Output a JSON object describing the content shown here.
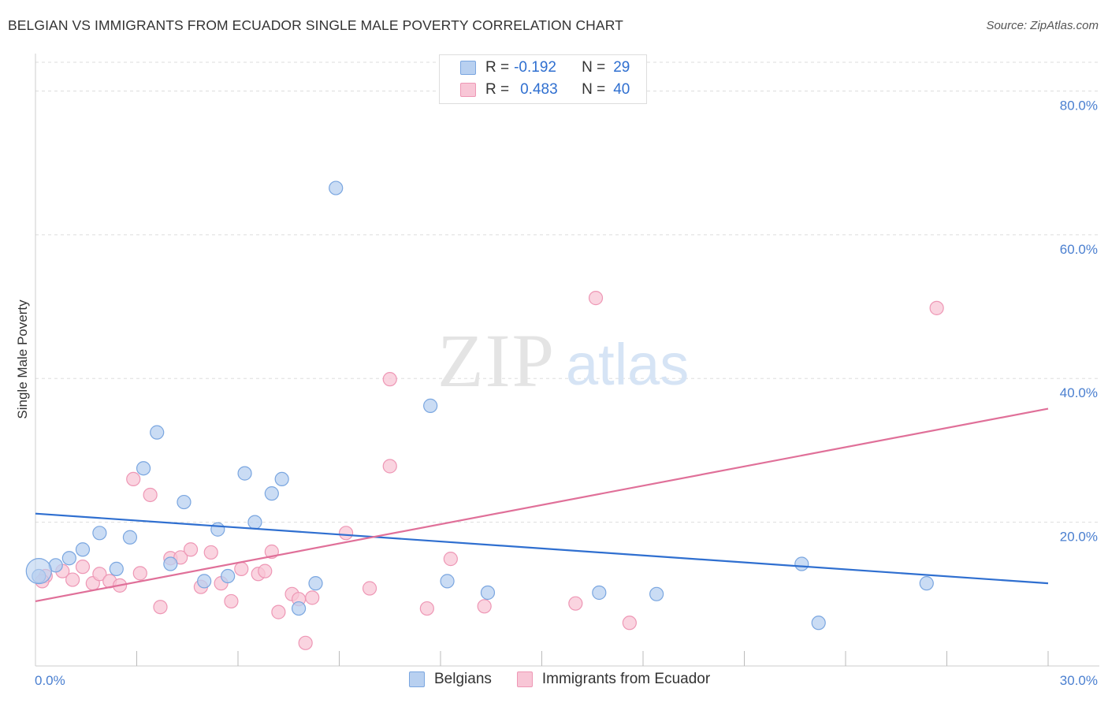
{
  "header": {
    "title": "BELGIAN VS IMMIGRANTS FROM ECUADOR SINGLE MALE POVERTY CORRELATION CHART",
    "source": "Source: ZipAtlas.com"
  },
  "watermark": {
    "zip": "ZIP",
    "atlas": "atlas"
  },
  "stats_legend": {
    "r_label": "R =",
    "n_label": "N =",
    "rows": [
      {
        "series": "Belgians",
        "r": "-0.192",
        "n": "29"
      },
      {
        "series": "Immigrants from Ecuador",
        "r": "0.483",
        "n": "40"
      }
    ]
  },
  "colors": {
    "belgians_fill": "#b8d0f0",
    "belgians_stroke": "#7aa6e0",
    "belgians_line": "#2f6fd0",
    "ecuador_fill": "#f8c6d6",
    "ecuador_stroke": "#ee97b5",
    "ecuador_line": "#e07099",
    "tick_color": "#4a7fd0"
  },
  "chart_data": {
    "type": "scatter",
    "title": "BELGIAN VS IMMIGRANTS FROM ECUADOR SINGLE MALE POVERTY CORRELATION CHART",
    "xlabel": "",
    "ylabel": "Single Male Poverty",
    "xlim": [
      0,
      30
    ],
    "ylim": [
      0,
      84
    ],
    "x_tick_labels": [
      {
        "value": 0,
        "label": "0.0%"
      },
      {
        "value": 30,
        "label": "30.0%"
      }
    ],
    "y_tick_labels": [
      {
        "value": 20,
        "label": "20.0%"
      },
      {
        "value": 40,
        "label": "40.0%"
      },
      {
        "value": 60,
        "label": "60.0%"
      },
      {
        "value": 80,
        "label": "80.0%"
      }
    ],
    "grid": true,
    "legend": "bottom-center",
    "series": [
      {
        "name": "Belgians",
        "points": [
          [
            0.1,
            12.5
          ],
          [
            0.6,
            14.0
          ],
          [
            1.0,
            15.0
          ],
          [
            1.4,
            16.2
          ],
          [
            1.9,
            18.5
          ],
          [
            2.4,
            13.5
          ],
          [
            2.8,
            17.9
          ],
          [
            3.2,
            27.5
          ],
          [
            3.6,
            32.5
          ],
          [
            4.0,
            14.2
          ],
          [
            4.4,
            22.8
          ],
          [
            5.0,
            11.8
          ],
          [
            5.4,
            19.0
          ],
          [
            5.7,
            12.5
          ],
          [
            6.2,
            26.8
          ],
          [
            6.5,
            20.0
          ],
          [
            7.0,
            24.0
          ],
          [
            7.3,
            26.0
          ],
          [
            7.8,
            8.0
          ],
          [
            8.3,
            11.5
          ],
          [
            8.9,
            66.5
          ],
          [
            11.7,
            36.2
          ],
          [
            12.2,
            11.8
          ],
          [
            13.4,
            10.2
          ],
          [
            16.7,
            10.2
          ],
          [
            18.4,
            10.0
          ],
          [
            22.7,
            14.2
          ],
          [
            23.2,
            6.0
          ],
          [
            26.4,
            11.5
          ]
        ]
      },
      {
        "name": "Immigrants from Ecuador",
        "points": [
          [
            0.3,
            12.5
          ],
          [
            0.8,
            13.2
          ],
          [
            1.1,
            12.0
          ],
          [
            1.4,
            13.8
          ],
          [
            1.7,
            11.5
          ],
          [
            1.9,
            12.8
          ],
          [
            2.2,
            11.8
          ],
          [
            2.5,
            11.2
          ],
          [
            2.9,
            26.0
          ],
          [
            3.1,
            12.9
          ],
          [
            3.4,
            23.8
          ],
          [
            3.7,
            8.2
          ],
          [
            4.0,
            15.0
          ],
          [
            4.3,
            15.1
          ],
          [
            4.6,
            16.2
          ],
          [
            4.9,
            11.0
          ],
          [
            5.2,
            15.8
          ],
          [
            5.5,
            11.5
          ],
          [
            5.8,
            9.0
          ],
          [
            6.1,
            13.5
          ],
          [
            6.6,
            12.8
          ],
          [
            6.8,
            13.2
          ],
          [
            7.0,
            15.9
          ],
          [
            7.2,
            7.5
          ],
          [
            7.6,
            10.0
          ],
          [
            7.8,
            9.3
          ],
          [
            8.0,
            3.2
          ],
          [
            8.2,
            9.5
          ],
          [
            9.2,
            18.5
          ],
          [
            9.9,
            10.8
          ],
          [
            10.5,
            39.9
          ],
          [
            10.5,
            27.8
          ],
          [
            11.6,
            8.0
          ],
          [
            12.3,
            14.9
          ],
          [
            13.3,
            8.3
          ],
          [
            16.0,
            8.7
          ],
          [
            16.6,
            51.2
          ],
          [
            17.6,
            6.0
          ],
          [
            26.7,
            49.8
          ],
          [
            0.2,
            11.8
          ]
        ]
      }
    ],
    "trend_lines": [
      {
        "name": "Belgians",
        "x": [
          0,
          30
        ],
        "y": [
          21.2,
          11.5
        ]
      },
      {
        "name": "Immigrants from Ecuador",
        "x": [
          0,
          30
        ],
        "y": [
          9.0,
          35.8
        ]
      }
    ]
  },
  "bottom_legend": {
    "items": [
      {
        "label": "Belgians"
      },
      {
        "label": "Immigrants from Ecuador"
      }
    ]
  }
}
